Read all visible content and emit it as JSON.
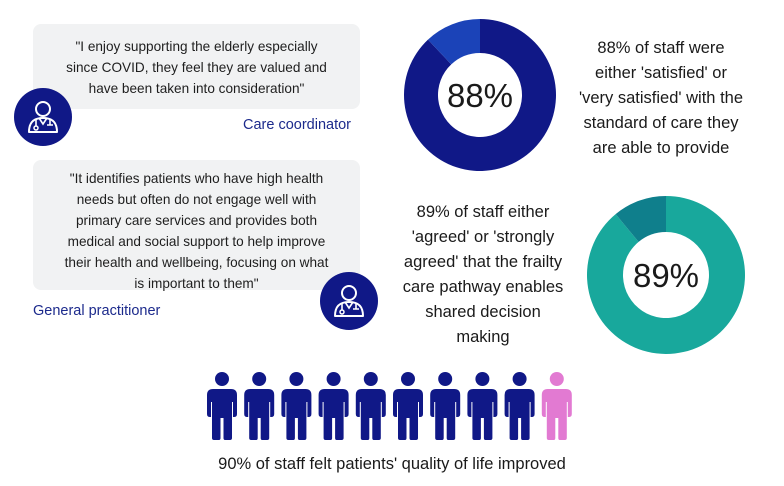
{
  "quotes": [
    {
      "lines": [
        "\"I enjoy supporting the elderly especially",
        "since COVID, they feel they are valued and",
        "have been taken into consideration\""
      ],
      "role": "Care coordinator",
      "icon": "doctor-icon"
    },
    {
      "lines": [
        "\"It identifies patients who have high health",
        "needs but often do not engage well with",
        "primary care services and provides both",
        "medical and social support to help improve",
        "their health and wellbeing, focusing on what",
        "is important to them\""
      ],
      "role": "General practitioner",
      "icon": "doctor-icon"
    }
  ],
  "chart_data": [
    {
      "type": "pie",
      "title": "88% of staff satisfied with standard of care",
      "label": "88%",
      "values": [
        88,
        12
      ],
      "categories": [
        "satisfied or very satisfied",
        "other"
      ],
      "colors": [
        "#101887",
        "#1b43b8"
      ],
      "text_lines": [
        "88% of staff were",
        "either 'satisfied' or",
        "'very satisfied' with the",
        "standard of care they",
        "are able to provide"
      ]
    },
    {
      "type": "pie",
      "title": "89% of staff agreed the frailty care pathway enables shared decision making",
      "label": "89%",
      "values": [
        89,
        11
      ],
      "categories": [
        "agreed or strongly agreed",
        "other"
      ],
      "colors": [
        "#18a89c",
        "#0f7f8c"
      ],
      "text_lines": [
        "89% of staff either",
        "'agreed' or 'strongly",
        "agreed' that the frailty",
        "care pathway enables",
        "shared decision",
        "making"
      ]
    },
    {
      "type": "pictogram",
      "title": "90% of staff felt patients' quality of life improved",
      "total": 10,
      "highlighted": 9,
      "values": [
        90,
        10
      ],
      "colors": [
        "#101887",
        "#e27ad2"
      ],
      "caption": "90% of staff felt patients' quality of life improved"
    }
  ]
}
